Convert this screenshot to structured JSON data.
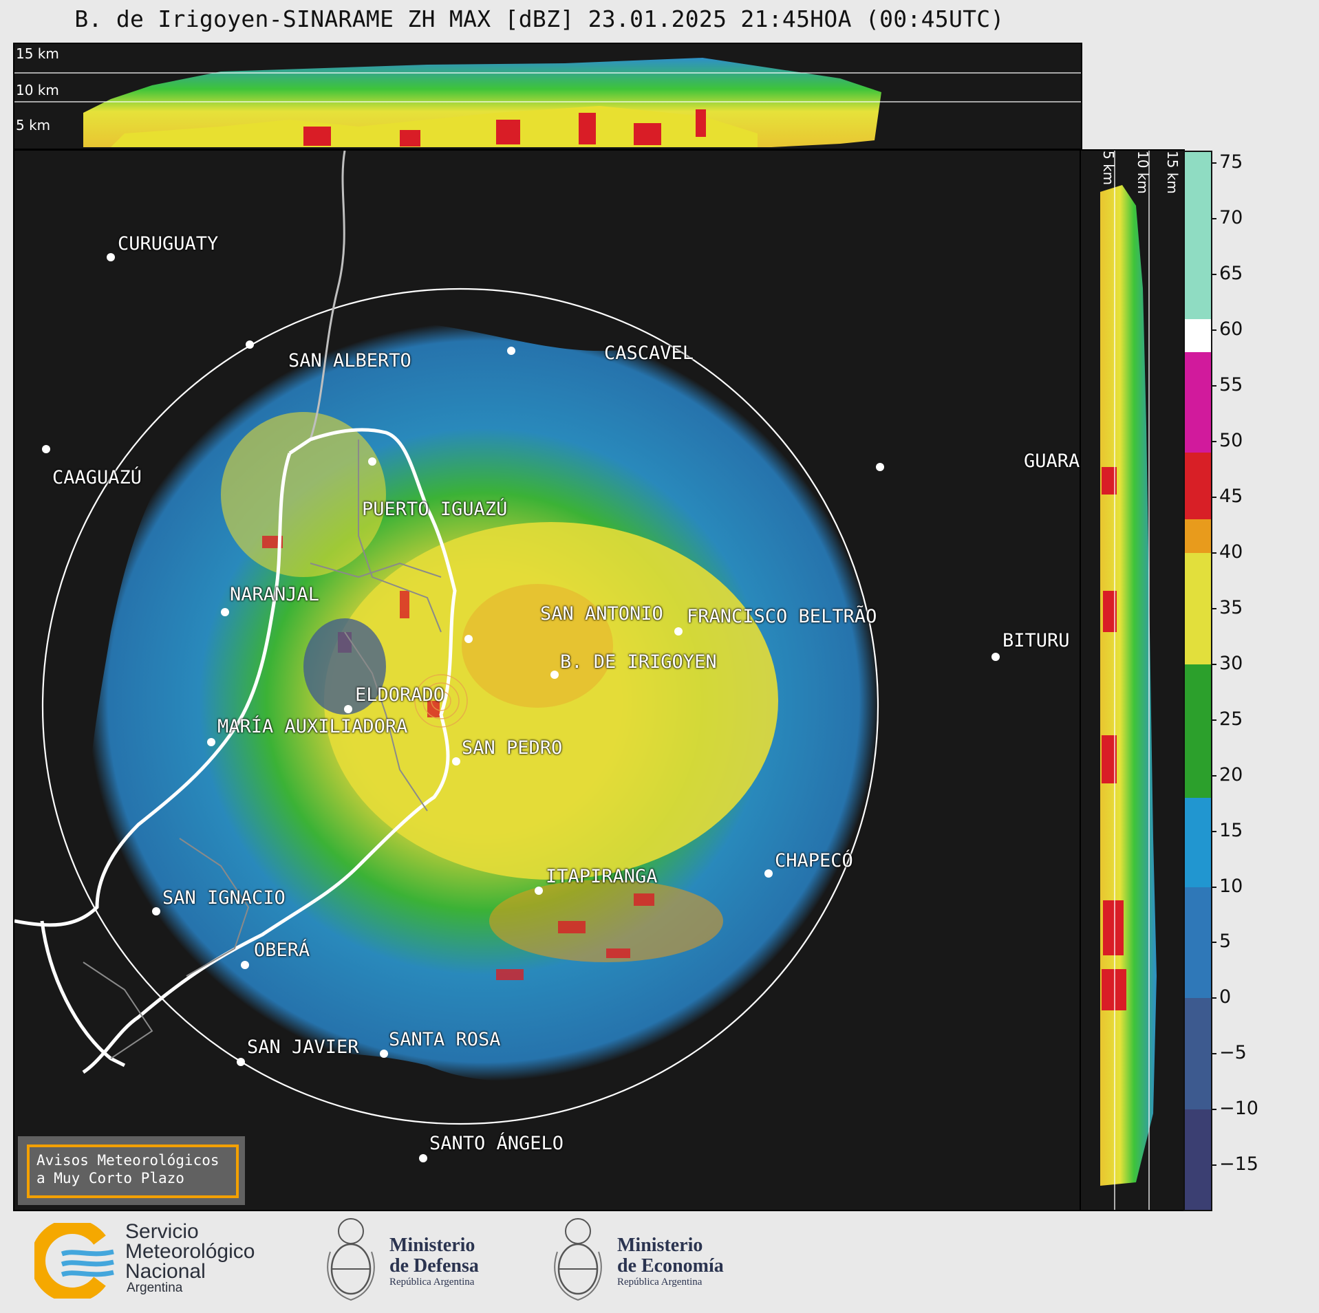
{
  "title": "B. de Irigoyen-SINARAME ZH MAX [dBZ] 23.01.2025 21:45HOA (00:45UTC)",
  "height_labels": [
    "15 km",
    "10 km",
    "5 km"
  ],
  "cities": [
    {
      "name": "CURUGUATY"
    },
    {
      "name": "SAN ALBERTO"
    },
    {
      "name": "CASCAVEL"
    },
    {
      "name": "CAAGUAZÚ"
    },
    {
      "name": "PUERTO IGUAZÚ"
    },
    {
      "name": "GUARA"
    },
    {
      "name": "NARANJAL"
    },
    {
      "name": "SAN ANTONIO"
    },
    {
      "name": "FRANCISCO BELTRÃO"
    },
    {
      "name": "B. DE IRIGOYEN"
    },
    {
      "name": "BITURU"
    },
    {
      "name": "ELDORADO"
    },
    {
      "name": "MARÍA AUXILIADORA"
    },
    {
      "name": "SAN PEDRO"
    },
    {
      "name": "ITAPIRANGA"
    },
    {
      "name": "CHAPECÓ"
    },
    {
      "name": "SAN IGNACIO"
    },
    {
      "name": "OBERÁ"
    },
    {
      "name": "SAN JAVIER"
    },
    {
      "name": "SANTA ROSA"
    },
    {
      "name": "SANTO ÁNGELO"
    }
  ],
  "colorbar": {
    "unit": "dBZ",
    "min": -19,
    "max": 76,
    "tick_labels": [
      "75",
      "70",
      "65",
      "60",
      "55",
      "50",
      "45",
      "40",
      "35",
      "30",
      "25",
      "20",
      "15",
      "10",
      "5",
      "0",
      "−5",
      "−10",
      "−15"
    ],
    "tick_values": [
      75,
      70,
      65,
      60,
      55,
      50,
      45,
      40,
      35,
      30,
      25,
      20,
      15,
      10,
      5,
      0,
      -5,
      -10,
      -15
    ],
    "bands": [
      {
        "from": -19,
        "to": -10,
        "color": "#3b3f72"
      },
      {
        "from": -10,
        "to": 0,
        "color": "#3d5a8f"
      },
      {
        "from": 0,
        "to": 10,
        "color": "#2f78b8"
      },
      {
        "from": 10,
        "to": 18,
        "color": "#2196d0"
      },
      {
        "from": 18,
        "to": 30,
        "color": "#2ca02c"
      },
      {
        "from": 30,
        "to": 40,
        "color": "#e2df3c"
      },
      {
        "from": 40,
        "to": 43,
        "color": "#e89b1c"
      },
      {
        "from": 43,
        "to": 49,
        "color": "#d81f26"
      },
      {
        "from": 49,
        "to": 58,
        "color": "#d11a9c"
      },
      {
        "from": 58,
        "to": 61,
        "color": "#ffffff"
      },
      {
        "from": 61,
        "to": 76,
        "color": "#8fdcc2"
      }
    ]
  },
  "aviso": {
    "line1": "Avisos Meteorológicos",
    "line2": "a Muy Corto Plazo"
  },
  "footer": {
    "smn_line1": "Servicio",
    "smn_line2": "Meteorológico",
    "smn_line3": "Nacional",
    "smn_country": "Argentina",
    "defensa_line1": "Ministerio",
    "defensa_line2": "de Defensa",
    "defensa_sub": "República Argentina",
    "economia_line1": "Ministerio",
    "economia_line2": "de Economía",
    "economia_sub": "República Argentina"
  }
}
